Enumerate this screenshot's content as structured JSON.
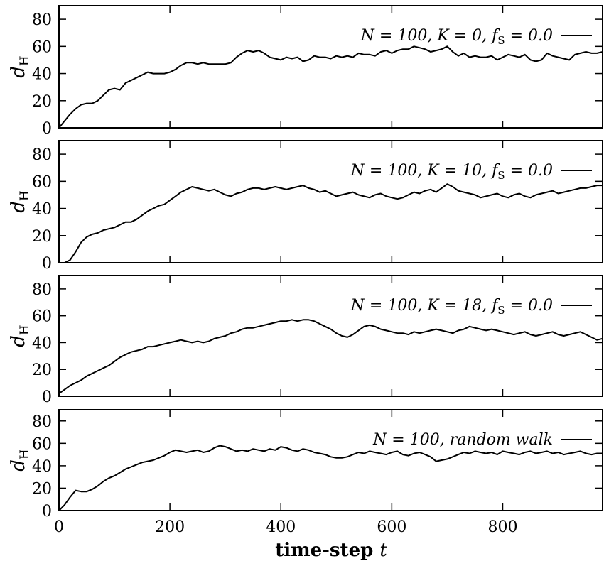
{
  "chart_data": [
    {
      "type": "line",
      "legend": "N = 100, K = 0, f_S = 0.0",
      "ylabel": "d_H",
      "xlim": [
        0,
        980
      ],
      "ylim": [
        0,
        90
      ],
      "yticks": [
        0,
        20,
        40,
        60,
        80
      ],
      "xticks": [
        0,
        200,
        400,
        600,
        800
      ],
      "series": [
        {
          "x": [
            0,
            10,
            20,
            30,
            40,
            50,
            60,
            70,
            80,
            90,
            100,
            110,
            120,
            130,
            140,
            150,
            160,
            170,
            180,
            190,
            200,
            210,
            220,
            230,
            240,
            250,
            260,
            270,
            280,
            290,
            300,
            310,
            320,
            330,
            340,
            350,
            360,
            370,
            380,
            390,
            400,
            410,
            420,
            430,
            440,
            450,
            460,
            470,
            480,
            490,
            500,
            510,
            520,
            530,
            540,
            550,
            560,
            570,
            580,
            590,
            600,
            610,
            620,
            630,
            640,
            650,
            660,
            670,
            680,
            690,
            700,
            710,
            720,
            730,
            740,
            750,
            760,
            770,
            780,
            790,
            800,
            810,
            820,
            830,
            840,
            850,
            860,
            870,
            880,
            890,
            900,
            910,
            920,
            930,
            940,
            950,
            960,
            970,
            980
          ],
          "y": [
            0,
            5,
            10,
            14,
            17,
            18,
            18,
            20,
            24,
            28,
            29,
            28,
            33,
            35,
            37,
            39,
            41,
            40,
            40,
            40,
            41,
            43,
            46,
            48,
            48,
            47,
            48,
            47,
            47,
            47,
            47,
            48,
            52,
            55,
            57,
            56,
            57,
            55,
            52,
            51,
            50,
            52,
            51,
            52,
            49,
            50,
            53,
            52,
            52,
            51,
            53,
            52,
            53,
            52,
            55,
            54,
            54,
            53,
            56,
            57,
            55,
            57,
            58,
            58,
            60,
            59,
            58,
            56,
            57,
            58,
            60,
            56,
            53,
            55,
            52,
            53,
            52,
            52,
            53,
            50,
            52,
            54,
            53,
            52,
            54,
            50,
            49,
            50,
            55,
            53,
            52,
            51,
            50,
            54,
            55,
            56,
            55,
            55,
            56
          ]
        }
      ]
    },
    {
      "type": "line",
      "legend": "N = 100, K = 10, f_S = 0.0",
      "ylabel": "d_H",
      "xlim": [
        0,
        980
      ],
      "ylim": [
        0,
        90
      ],
      "yticks": [
        0,
        20,
        40,
        60,
        80
      ],
      "xticks": [
        0,
        200,
        400,
        600,
        800
      ],
      "series": [
        {
          "x": [
            0,
            10,
            20,
            30,
            40,
            50,
            60,
            70,
            80,
            90,
            100,
            110,
            120,
            130,
            140,
            150,
            160,
            170,
            180,
            190,
            200,
            210,
            220,
            230,
            240,
            250,
            260,
            270,
            280,
            290,
            300,
            310,
            320,
            330,
            340,
            350,
            360,
            370,
            380,
            390,
            400,
            410,
            420,
            430,
            440,
            450,
            460,
            470,
            480,
            490,
            500,
            510,
            520,
            530,
            540,
            550,
            560,
            570,
            580,
            590,
            600,
            610,
            620,
            630,
            640,
            650,
            660,
            670,
            680,
            690,
            700,
            710,
            720,
            730,
            740,
            750,
            760,
            770,
            780,
            790,
            800,
            810,
            820,
            830,
            840,
            850,
            860,
            870,
            880,
            890,
            900,
            910,
            920,
            930,
            940,
            950,
            960,
            970,
            980
          ],
          "y": [
            0,
            0,
            2,
            8,
            15,
            19,
            21,
            22,
            24,
            25,
            26,
            28,
            30,
            30,
            32,
            35,
            38,
            40,
            42,
            43,
            46,
            49,
            52,
            54,
            56,
            55,
            54,
            53,
            54,
            52,
            50,
            49,
            51,
            52,
            54,
            55,
            55,
            54,
            55,
            56,
            55,
            54,
            55,
            56,
            57,
            55,
            54,
            52,
            53,
            51,
            49,
            50,
            51,
            52,
            50,
            49,
            48,
            50,
            51,
            49,
            48,
            47,
            48,
            50,
            52,
            51,
            53,
            54,
            52,
            55,
            58,
            56,
            53,
            52,
            51,
            50,
            48,
            49,
            50,
            51,
            49,
            48,
            50,
            51,
            49,
            48,
            50,
            51,
            52,
            53,
            51,
            52,
            53,
            54,
            55,
            55,
            56,
            57,
            57
          ]
        }
      ]
    },
    {
      "type": "line",
      "legend": "N = 100, K = 18, f_S = 0.0",
      "ylabel": "d_H",
      "xlim": [
        0,
        980
      ],
      "ylim": [
        0,
        90
      ],
      "yticks": [
        0,
        20,
        40,
        60,
        80
      ],
      "xticks": [
        0,
        200,
        400,
        600,
        800
      ],
      "series": [
        {
          "x": [
            0,
            10,
            20,
            30,
            40,
            50,
            60,
            70,
            80,
            90,
            100,
            110,
            120,
            130,
            140,
            150,
            160,
            170,
            180,
            190,
            200,
            210,
            220,
            230,
            240,
            250,
            260,
            270,
            280,
            290,
            300,
            310,
            320,
            330,
            340,
            350,
            360,
            370,
            380,
            390,
            400,
            410,
            420,
            430,
            440,
            450,
            460,
            470,
            480,
            490,
            500,
            510,
            520,
            530,
            540,
            550,
            560,
            570,
            580,
            590,
            600,
            610,
            620,
            630,
            640,
            650,
            660,
            670,
            680,
            690,
            700,
            710,
            720,
            730,
            740,
            750,
            760,
            770,
            780,
            790,
            800,
            810,
            820,
            830,
            840,
            850,
            860,
            870,
            880,
            890,
            900,
            910,
            920,
            930,
            940,
            950,
            960,
            970,
            980
          ],
          "y": [
            2,
            5,
            8,
            10,
            12,
            15,
            17,
            19,
            21,
            23,
            26,
            29,
            31,
            33,
            34,
            35,
            37,
            37,
            38,
            39,
            40,
            41,
            42,
            41,
            40,
            41,
            40,
            41,
            43,
            44,
            45,
            47,
            48,
            50,
            51,
            51,
            52,
            53,
            54,
            55,
            56,
            56,
            57,
            56,
            57,
            57,
            56,
            54,
            52,
            50,
            47,
            45,
            44,
            46,
            49,
            52,
            53,
            52,
            50,
            49,
            48,
            47,
            47,
            46,
            48,
            47,
            48,
            49,
            50,
            49,
            48,
            47,
            49,
            50,
            52,
            51,
            50,
            49,
            50,
            49,
            48,
            47,
            46,
            47,
            48,
            46,
            45,
            46,
            47,
            48,
            46,
            45,
            46,
            47,
            48,
            46,
            44,
            42,
            43
          ]
        }
      ]
    },
    {
      "type": "line",
      "legend": "N = 100, random walk",
      "ylabel": "d_H",
      "xlabel": "time-step t",
      "xlim": [
        0,
        980
      ],
      "ylim": [
        0,
        90
      ],
      "yticks": [
        0,
        20,
        40,
        60,
        80
      ],
      "xticks": [
        0,
        200,
        400,
        600,
        800
      ],
      "series": [
        {
          "x": [
            0,
            10,
            20,
            30,
            40,
            50,
            60,
            70,
            80,
            90,
            100,
            110,
            120,
            130,
            140,
            150,
            160,
            170,
            180,
            190,
            200,
            210,
            220,
            230,
            240,
            250,
            260,
            270,
            280,
            290,
            300,
            310,
            320,
            330,
            340,
            350,
            360,
            370,
            380,
            390,
            400,
            410,
            420,
            430,
            440,
            450,
            460,
            470,
            480,
            490,
            500,
            510,
            520,
            530,
            540,
            550,
            560,
            570,
            580,
            590,
            600,
            610,
            620,
            630,
            640,
            650,
            660,
            670,
            680,
            690,
            700,
            710,
            720,
            730,
            740,
            750,
            760,
            770,
            780,
            790,
            800,
            810,
            820,
            830,
            840,
            850,
            860,
            870,
            880,
            890,
            900,
            910,
            920,
            930,
            940,
            950,
            960,
            970,
            980
          ],
          "y": [
            0,
            5,
            12,
            18,
            17,
            17,
            19,
            22,
            26,
            29,
            31,
            34,
            37,
            39,
            41,
            43,
            44,
            45,
            47,
            49,
            52,
            54,
            53,
            52,
            53,
            54,
            52,
            53,
            56,
            58,
            57,
            55,
            53,
            54,
            53,
            55,
            54,
            53,
            55,
            54,
            57,
            56,
            54,
            53,
            55,
            54,
            52,
            51,
            50,
            48,
            47,
            47,
            48,
            50,
            52,
            51,
            53,
            52,
            51,
            50,
            52,
            53,
            50,
            49,
            51,
            52,
            50,
            48,
            44,
            45,
            46,
            48,
            50,
            52,
            51,
            53,
            52,
            51,
            52,
            50,
            53,
            52,
            51,
            50,
            52,
            53,
            51,
            52,
            53,
            51,
            52,
            50,
            51,
            52,
            53,
            51,
            50,
            51,
            51
          ]
        }
      ]
    }
  ]
}
